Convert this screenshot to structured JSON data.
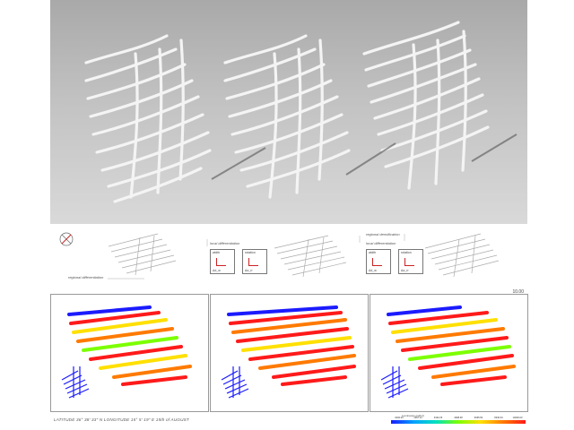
{
  "labels": {
    "regional": "regional differentiation",
    "local1": "local differentiation",
    "regional_dens": "regional densification",
    "local2": "local differentiation",
    "box_width": "width",
    "box_rotation": "rotation",
    "box_dw": "Δd_w",
    "box_drr": "Δα_rr"
  },
  "time": "10.00",
  "footer": "LATITUDE  36° 38' 33\" N  LONGITUDE  15° 5' 19\" E   15th of AUGUST",
  "legend": {
    "caption": "Luminance (cd/m²)",
    "ticks": [
      "0000.00",
      "1667.13",
      "3332.25",
      "4998.38",
      "6665.50",
      "8330.63",
      "10000.00"
    ]
  },
  "colors": {
    "high": "#ff1a1a",
    "mid": "#ffe000",
    "low": "#1b1bff"
  }
}
